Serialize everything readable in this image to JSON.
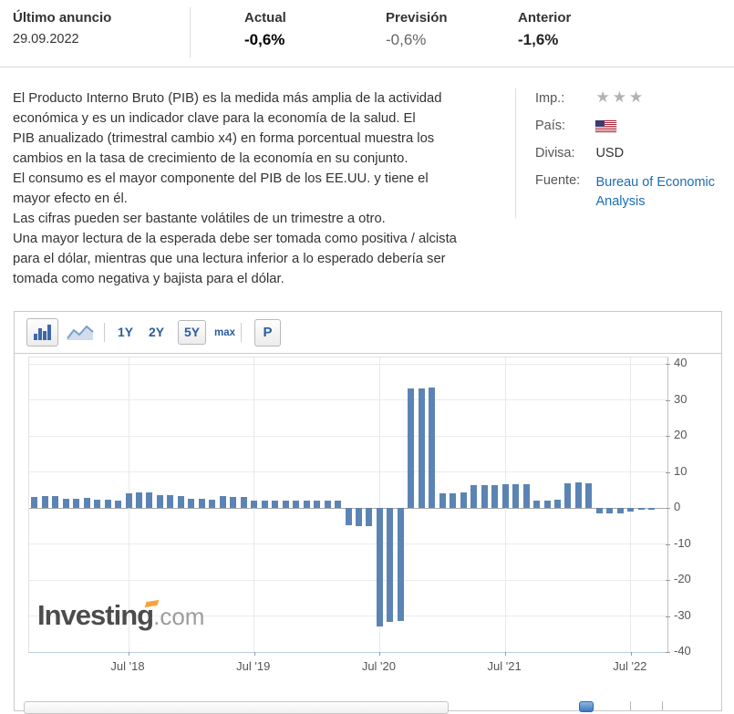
{
  "header": {
    "last_release_label": "Último anuncio",
    "last_release_date": "29.09.2022",
    "columns": [
      {
        "label": "Actual",
        "value": "-0,6%"
      },
      {
        "label": "Previsión",
        "value": "-0,6%"
      },
      {
        "label": "Anterior",
        "value": "-1,6%"
      }
    ]
  },
  "description": {
    "lines": [
      "El Producto Interno Bruto (PIB) es la medida más amplia de la actividad",
      "económica y es un indicador clave para la economía de la salud. El",
      "PIB anualizado (trimestral cambio x4) en forma porcentual muestra los",
      "cambios en la tasa de crecimiento de la economía en su conjunto.",
      "El consumo es el mayor componente del PIB de los EE.UU. y tiene el",
      "mayor efecto en él.",
      "Las cifras pueden ser bastante volátiles de un trimestre a otro.",
      "Una mayor lectura de la esperada debe ser tomada como positiva / alcista",
      "para el dólar, mientras que una lectura inferior a lo esperado debería ser",
      "tomada como negativa y bajista para el dólar."
    ]
  },
  "info": {
    "importance_label": "Imp.:",
    "importance_stars": "★★★",
    "country_label": "País:",
    "country_flag": "us-flag",
    "currency_label": "Divisa:",
    "currency_value": "USD",
    "source_label": "Fuente:",
    "source_value": "Bureau of Economic Analysis"
  },
  "toolbar": {
    "bar_view_icon": "bar-chart-icon",
    "line_view_icon": "line-chart-icon",
    "ranges": [
      "1Y",
      "2Y",
      "5Y",
      "max"
    ],
    "selected_range": "5Y",
    "p_label": "P"
  },
  "watermark": {
    "brand": "Investing",
    "tld": ".com"
  },
  "colors": {
    "bar": "#5b84b5",
    "toolbar_text": "#2a5ca0",
    "link": "#1c6cb5",
    "accent_orange": "#f8a33a"
  },
  "chart_data": {
    "type": "bar",
    "x": [
      "2017-10",
      "2017-11",
      "2017-12",
      "2018-01",
      "2018-02",
      "2018-03",
      "2018-04",
      "2018-05",
      "2018-06",
      "2018-07",
      "2018-08",
      "2018-09",
      "2018-10",
      "2018-11",
      "2018-12",
      "2019-01",
      "2019-02",
      "2019-03",
      "2019-04",
      "2019-05",
      "2019-06",
      "2019-07",
      "2019-08",
      "2019-09",
      "2019-10",
      "2019-11",
      "2019-12",
      "2020-01",
      "2020-02",
      "2020-03",
      "2020-04",
      "2020-05",
      "2020-06",
      "2020-07",
      "2020-08",
      "2020-09",
      "2020-10",
      "2020-11",
      "2020-12",
      "2021-01",
      "2021-02",
      "2021-03",
      "2021-04",
      "2021-05",
      "2021-06",
      "2021-07",
      "2021-08",
      "2021-09",
      "2021-10",
      "2021-11",
      "2021-12",
      "2022-01",
      "2022-02",
      "2022-03",
      "2022-04",
      "2022-05",
      "2022-06",
      "2022-07",
      "2022-08",
      "2022-09"
    ],
    "values": [
      3.0,
      3.3,
      3.2,
      2.6,
      2.5,
      2.9,
      2.3,
      2.2,
      2.0,
      4.1,
      4.2,
      4.2,
      3.5,
      3.5,
      3.4,
      2.6,
      2.6,
      2.2,
      3.2,
      3.1,
      3.1,
      2.1,
      2.0,
      2.0,
      1.9,
      2.1,
      2.1,
      2.1,
      2.1,
      2.1,
      -4.8,
      -5.0,
      -5.0,
      -32.9,
      -31.7,
      -31.4,
      33.1,
      33.1,
      33.4,
      4.0,
      4.1,
      4.3,
      6.4,
      6.4,
      6.4,
      6.5,
      6.6,
      6.7,
      2.0,
      2.1,
      2.3,
      6.9,
      7.0,
      6.9,
      -1.4,
      -1.5,
      -1.6,
      -0.9,
      -0.6,
      -0.6
    ],
    "x_tick_labels": [
      "Jul '18",
      "Jul '19",
      "Jul '20",
      "Jul '21",
      "Jul '22"
    ],
    "x_tick_indices": [
      9,
      21,
      33,
      45,
      57
    ],
    "y_ticks": [
      40,
      30,
      20,
      10,
      0,
      -10,
      -20,
      -30,
      -40
    ],
    "ylim": [
      -40,
      40
    ],
    "axis_slots": 61,
    "grid": true,
    "legend": "none",
    "bar_color": "#5b84b5"
  }
}
